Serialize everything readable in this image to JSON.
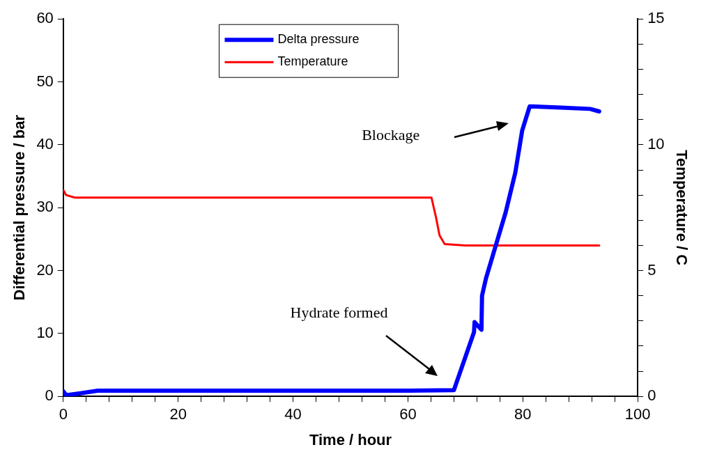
{
  "chart_data": {
    "type": "line",
    "xlabel": "Time / hour",
    "ylabel": "Differential pressure / bar",
    "y2label": "Temperature / C",
    "xlim": [
      0,
      100
    ],
    "xticks": [
      0,
      {
        "value": 4,
        "label": null
      },
      {
        "value": 8,
        "label": null
      },
      {
        "value": 12,
        "label": null
      },
      {
        "value": 16,
        "label": null
      },
      20,
      {
        "value": 24,
        "label": null
      },
      {
        "value": 28,
        "label": null
      },
      {
        "value": 32,
        "label": null
      },
      {
        "value": 36,
        "label": null
      },
      40,
      {
        "value": 44,
        "label": null
      },
      {
        "value": 48,
        "label": null
      },
      {
        "value": 52,
        "label": null
      },
      {
        "value": 56,
        "label": null
      },
      60,
      {
        "value": 64,
        "label": null
      },
      {
        "value": 68,
        "label": null
      },
      {
        "value": 72,
        "label": null
      },
      {
        "value": 76,
        "label": null
      },
      80,
      {
        "value": 84,
        "label": null
      },
      {
        "value": 88,
        "label": null
      },
      {
        "value": 92,
        "label": null
      },
      {
        "value": 96,
        "label": null
      },
      100
    ],
    "ylim": [
      0,
      60
    ],
    "yticks": [
      0,
      10,
      20,
      30,
      40,
      50,
      60
    ],
    "y2lim": [
      0,
      15
    ],
    "y2ticks": [
      0,
      {
        "value": 1,
        "label": null
      },
      {
        "value": 2,
        "label": null
      },
      {
        "value": 3,
        "label": null
      },
      {
        "value": 4,
        "label": null
      },
      5,
      {
        "value": 6,
        "label": null
      },
      {
        "value": 7,
        "label": null
      },
      {
        "value": 8,
        "label": null
      },
      {
        "value": 9,
        "label": null
      },
      10,
      {
        "value": 11,
        "label": null
      },
      {
        "value": 12,
        "label": null
      },
      {
        "value": 13,
        "label": null
      },
      {
        "value": 14,
        "label": null
      },
      15
    ],
    "series": [
      {
        "name": "Delta pressure",
        "color": "#0000ff",
        "x": [
          0,
          0.5,
          3,
          6,
          20,
          40,
          60,
          68,
          71.5,
          71.6,
          72.8,
          72.9,
          73.6,
          75.3,
          77,
          78.7,
          79.9,
          81.2,
          86.6,
          91.7,
          93.3
        ],
        "values": [
          0.8,
          0.2,
          0.5,
          0.9,
          0.9,
          0.9,
          0.9,
          1.0,
          10.2,
          11.8,
          10.6,
          16,
          18.8,
          24,
          29.2,
          35.6,
          42.3,
          46.1,
          45.9,
          45.7,
          45.3
        ]
      },
      {
        "name": "Temperature",
        "color": "#ff0000",
        "axis": "y2",
        "x": [
          0,
          0.5,
          2,
          30,
          64.1,
          64.9,
          65.5,
          66.4,
          70,
          80,
          93.3
        ],
        "values": [
          8.2,
          8.0,
          7.9,
          7.9,
          7.9,
          7.1,
          6.4,
          6.05,
          6.0,
          6.0,
          6.0
        ]
      }
    ],
    "annotations": [
      "Hydrate formed",
      "Blockage"
    ],
    "legend": "top",
    "grid": false,
    "marker": "none",
    "line_style": "solid"
  }
}
